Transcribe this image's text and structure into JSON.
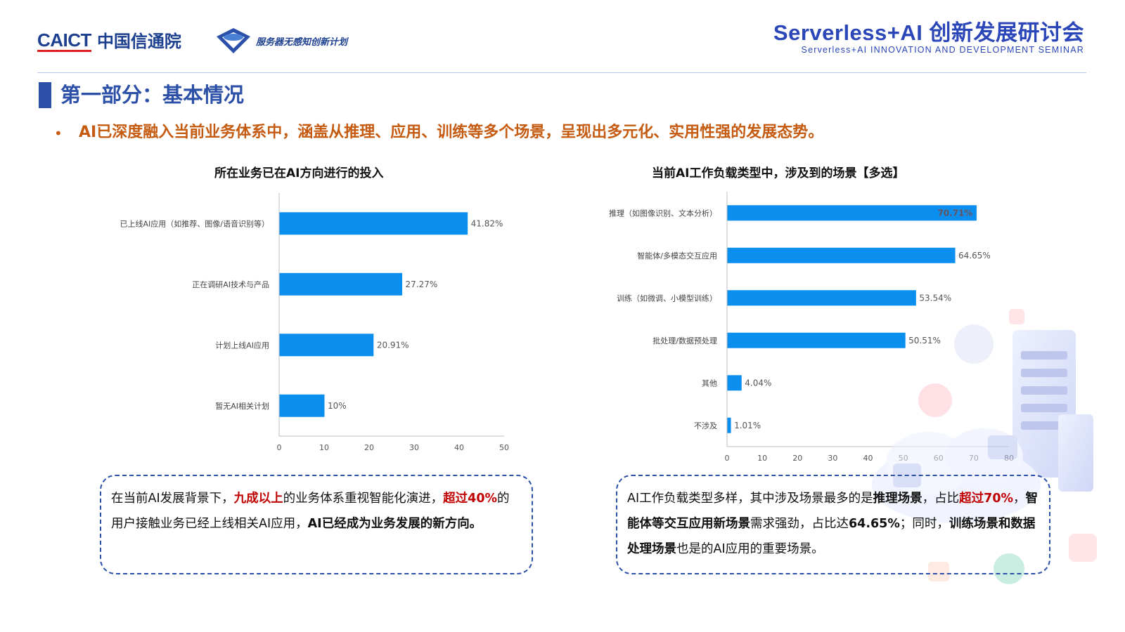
{
  "header": {
    "logo_en": "CAICT",
    "logo_cn": "中国信通院",
    "plan_text": "服务器无感知创新计划",
    "seminar_title": "Serverless+AI 创新发展研讨会",
    "seminar_subtitle": "Serverless+AI INNOVATION AND DEVELOPMENT SEMINAR"
  },
  "section": {
    "title": "第一部分：基本情况",
    "bullet_marker": "•",
    "bullet": "AI已深度融入当前业务体系中，涵盖从推理、应用、训练等多个场景，呈现出多元化、实用性强的发展态势。"
  },
  "chart_data": [
    {
      "type": "bar",
      "orientation": "horizontal",
      "title": "所在业务已在AI方向进行的投入",
      "categories": [
        "已上线AI应用（如推荐、图像/语音识别等）",
        "正在调研AI技术与产品",
        "计划上线AI应用",
        "暂无AI相关计划"
      ],
      "values": [
        41.82,
        27.27,
        20.91,
        10
      ],
      "value_labels": [
        "41.82%",
        "27.27%",
        "20.91%",
        "10%"
      ],
      "xlim": [
        0,
        50
      ],
      "xticks": [
        0,
        10,
        20,
        30,
        40,
        50
      ],
      "bar_color": "#0b8fef",
      "grid": false
    },
    {
      "type": "bar",
      "orientation": "horizontal",
      "title": "当前AI工作负载类型中，涉及到的场景【多选】",
      "categories": [
        "推理（如图像识别、文本分析）",
        "智能体/多模态交互应用",
        "训练（如微调、小模型训练）",
        "批处理/数据预处理",
        "其他",
        "不涉及"
      ],
      "values": [
        70.71,
        64.65,
        53.54,
        50.51,
        4.04,
        1.01
      ],
      "value_labels": [
        "70.71%",
        "64.65%",
        "53.54%",
        "50.51%",
        "4.04%",
        "1.01%"
      ],
      "xlim": [
        0,
        80
      ],
      "xticks": [
        0,
        10,
        20,
        30,
        40,
        50,
        60,
        70,
        80
      ],
      "bar_color": "#0b8fef",
      "grid": false
    }
  ],
  "notes": {
    "left": {
      "p1": "在当前AI发展背景下，",
      "r1": "九成以上",
      "p2": "的业务体系重视智能化演进，",
      "r2": "超过40%",
      "p3": "的用户接触业务已经上线相关AI应用，",
      "b1": "AI已经成为业务发展的新方向。"
    },
    "right": {
      "p1": "AI工作负载类型多样，其中涉及场景最多的是",
      "b1": "推理场景",
      "p2": "，占比",
      "r1": "超过70%",
      "p3": "，",
      "b2": "智能体等交互应用新场景",
      "p4": "需求强劲，占比达",
      "b3": "64.65%",
      "p5": "；同时，",
      "b4": "训练场景和数据处理场景",
      "p6": "也是的AI应用的重要场景。"
    }
  },
  "colors": {
    "brand_blue": "#2c50a8",
    "accent_orange": "#c55a11",
    "highlight_red": "#c00000",
    "bar_blue": "#0b8fef"
  }
}
